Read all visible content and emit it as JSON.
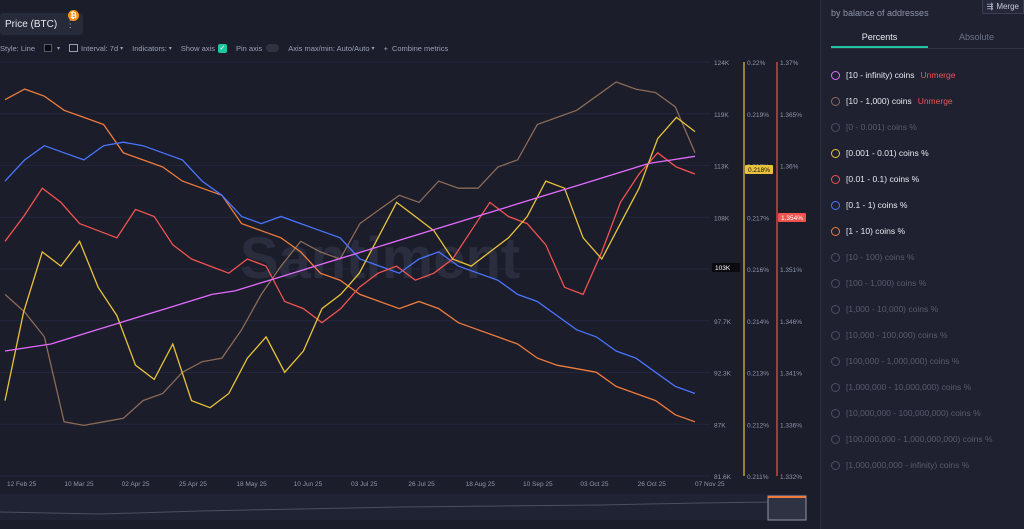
{
  "header": {
    "title": "Price (BTC)",
    "menu_icon": "⋮",
    "badge": "₿"
  },
  "toolbar": {
    "style": "Style: Line",
    "interval": "Interval: 7d",
    "indicators": "Indicators:",
    "show_axis": "Show axis",
    "pin_axis": "Pin axis",
    "axis_maxmin": "Axis max/min: Auto/Auto",
    "combine": "Combine metrics"
  },
  "panel": {
    "subtitle": "by balance of addresses",
    "merge_label": "Merge",
    "tabs": [
      "Percents",
      "Absolute"
    ],
    "metrics": [
      {
        "label": "[10 - infinity) coins",
        "color": "#e36bff",
        "active": true,
        "unmerge": "Unmerge"
      },
      {
        "label": "[10 - 1,000) coins",
        "color": "#8b6a58",
        "active": true,
        "unmerge": "Unmerge"
      },
      {
        "label": "[0 - 0.001) coins %",
        "color": "#4a4f62",
        "active": false
      },
      {
        "label": "[0.001 - 0.01) coins %",
        "color": "#e8c23a",
        "active": true
      },
      {
        "label": "[0.01 - 0.1) coins %",
        "color": "#ef5350",
        "active": true
      },
      {
        "label": "[0.1 - 1) coins %",
        "color": "#4a74ff",
        "active": true
      },
      {
        "label": "[1 - 10) coins %",
        "color": "#ee7c3c",
        "active": true
      },
      {
        "label": "[10 - 100) coins %",
        "color": "#4a4f62",
        "active": false
      },
      {
        "label": "[100 - 1,000) coins %",
        "color": "#4a4f62",
        "active": false
      },
      {
        "label": "[1,000 - 10,000) coins %",
        "color": "#4a4f62",
        "active": false
      },
      {
        "label": "[10,000 - 100,000) coins %",
        "color": "#4a4f62",
        "active": false
      },
      {
        "label": "[100,000 - 1,000,000) coins %",
        "color": "#4a4f62",
        "active": false
      },
      {
        "label": "[1,000,000 - 10,000,000) coins %",
        "color": "#4a4f62",
        "active": false
      },
      {
        "label": "[10,000,000 - 100,000,000) coins %",
        "color": "#4a4f62",
        "active": false
      },
      {
        "label": "[100,000,000 - 1,000,000,000) coins %",
        "color": "#4a4f62",
        "active": false
      },
      {
        "label": "[1,000,000,000 - infinity) coins %",
        "color": "#4a4f62",
        "active": false
      }
    ]
  },
  "chart_data": {
    "type": "line",
    "x_ticks": [
      "12 Feb 25",
      "10 Mar 25",
      "02 Apr 25",
      "25 Apr 25",
      "18 May 25",
      "10 Jun 25",
      "03 Jul 25",
      "26 Jul 25",
      "18 Aug 25",
      "10 Sep 25",
      "03 Oct 25",
      "26 Oct 25",
      "07 Nov 25"
    ],
    "axis_price": {
      "ticks": [
        "124K",
        "119K",
        "113K",
        "108K",
        "103K",
        "97.7K",
        "92.3K",
        "87K",
        "81.6K"
      ],
      "current": "103K"
    },
    "axis_pct_a": {
      "ticks": [
        "0.22%",
        "0.219%",
        "0.218%",
        "0.217%",
        "0.216%",
        "0.214%",
        "0.213%",
        "0.212%",
        "0.211%"
      ],
      "current": "0.218%",
      "color": "#e8c23a"
    },
    "axis_pct_b": {
      "ticks": [
        "1.37%",
        "1.365%",
        "1.36%",
        "1.356%",
        "1.351%",
        "1.346%",
        "1.341%",
        "1.336%",
        "1.332%"
      ],
      "current": "1.354%",
      "color": "#ef5350"
    },
    "watermark": "Santiment",
    "series": [
      {
        "color": "#0b0b0f",
        "values": [
          97,
          101,
          83,
          84,
          82,
          82,
          83,
          92,
          94,
          103,
          103,
          105,
          108,
          105,
          105,
          108,
          109,
          118,
          118,
          118,
          112,
          117,
          117,
          110,
          110,
          111,
          121,
          121,
          123,
          118,
          122,
          114,
          114,
          115,
          113,
          109,
          104,
          103,
          103
        ]
      },
      {
        "color": "#8b6a58",
        "values": [
          0.4,
          0.35,
          0.28,
          0.04,
          0.03,
          0.04,
          0.05,
          0.1,
          0.12,
          0.18,
          0.21,
          0.22,
          0.3,
          0.4,
          0.48,
          0.55,
          0.52,
          0.5,
          0.6,
          0.64,
          0.68,
          0.66,
          0.72,
          0.7,
          0.7,
          0.76,
          0.78,
          0.88,
          0.9,
          0.92,
          0.96,
          1.0,
          0.98,
          0.97,
          0.93,
          0.8
        ]
      },
      {
        "color": "#ee7c3c",
        "values": [
          0.95,
          0.98,
          0.96,
          0.92,
          0.9,
          0.88,
          0.8,
          0.78,
          0.76,
          0.72,
          0.7,
          0.68,
          0.6,
          0.58,
          0.56,
          0.52,
          0.46,
          0.44,
          0.4,
          0.38,
          0.36,
          0.38,
          0.36,
          0.32,
          0.3,
          0.28,
          0.26,
          0.22,
          0.2,
          0.19,
          0.18,
          0.14,
          0.12,
          0.1,
          0.06,
          0.04
        ]
      },
      {
        "color": "#4a74ff",
        "values": [
          0.72,
          0.78,
          0.82,
          0.8,
          0.78,
          0.82,
          0.83,
          0.82,
          0.8,
          0.78,
          0.72,
          0.68,
          0.62,
          0.6,
          0.62,
          0.6,
          0.58,
          0.56,
          0.5,
          0.48,
          0.46,
          0.5,
          0.52,
          0.48,
          0.46,
          0.44,
          0.4,
          0.38,
          0.34,
          0.3,
          0.28,
          0.24,
          0.22,
          0.18,
          0.14,
          0.12
        ]
      },
      {
        "color": "#ef5350",
        "values": [
          0.55,
          0.62,
          0.7,
          0.66,
          0.6,
          0.58,
          0.56,
          0.64,
          0.62,
          0.54,
          0.5,
          0.48,
          0.46,
          0.5,
          0.48,
          0.38,
          0.36,
          0.32,
          0.36,
          0.42,
          0.46,
          0.48,
          0.44,
          0.46,
          0.5,
          0.58,
          0.66,
          0.62,
          0.6,
          0.54,
          0.42,
          0.4,
          0.52,
          0.66,
          0.74,
          0.8,
          0.76,
          0.74
        ]
      },
      {
        "color": "#e8c23a",
        "values": [
          0.1,
          0.35,
          0.52,
          0.48,
          0.55,
          0.42,
          0.34,
          0.2,
          0.16,
          0.26,
          0.1,
          0.08,
          0.12,
          0.22,
          0.28,
          0.18,
          0.24,
          0.36,
          0.4,
          0.46,
          0.56,
          0.66,
          0.62,
          0.58,
          0.5,
          0.48,
          0.52,
          0.56,
          0.62,
          0.72,
          0.7,
          0.56,
          0.5,
          0.6,
          0.7,
          0.84,
          0.9,
          0.86
        ]
      },
      {
        "color": "#e36bff",
        "values": [
          0.24,
          0.25,
          0.26,
          0.28,
          0.3,
          0.32,
          0.34,
          0.36,
          0.38,
          0.4,
          0.41,
          0.43,
          0.45,
          0.47,
          0.49,
          0.51,
          0.53,
          0.55,
          0.57,
          0.59,
          0.61,
          0.63,
          0.65,
          0.67,
          0.69,
          0.71,
          0.73,
          0.75,
          0.77,
          0.78,
          0.79
        ]
      }
    ]
  }
}
